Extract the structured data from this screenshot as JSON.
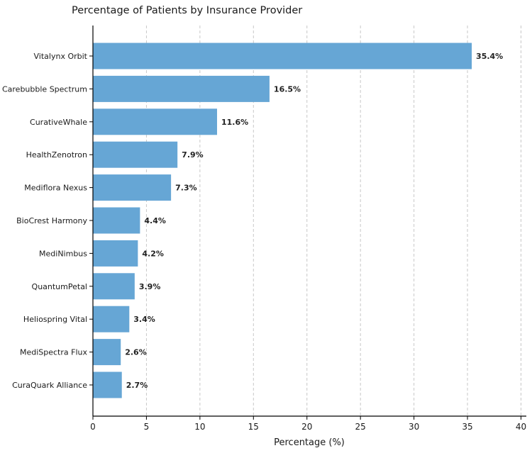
{
  "chart_data": {
    "type": "bar",
    "orientation": "horizontal",
    "title": "Percentage of Patients by Insurance Provider",
    "xlabel": "Percentage (%)",
    "ylabel": "",
    "categories": [
      "Vitalynx Orbit",
      "Carebubble Spectrum",
      "CurativeWhale",
      "HealthZenotron",
      "Mediflora Nexus",
      "BioCrest Harmony",
      "MediNimbus",
      "QuantumPetal",
      "Heliospring Vital",
      "MediSpectra Flux",
      "CuraQuark Alliance"
    ],
    "values": [
      35.4,
      16.5,
      11.6,
      7.9,
      7.3,
      4.4,
      4.2,
      3.9,
      3.4,
      2.6,
      2.7
    ],
    "value_labels": [
      "35.4%",
      "16.5%",
      "11.6%",
      "7.9%",
      "7.3%",
      "4.4%",
      "4.2%",
      "3.9%",
      "3.4%",
      "2.6%",
      "2.7%"
    ],
    "xlim": [
      0,
      40.5
    ],
    "xticks": [
      0,
      5,
      10,
      15,
      20,
      25,
      30,
      35,
      40
    ],
    "xtick_labels": [
      "0",
      "5",
      "10",
      "15",
      "20",
      "25",
      "30",
      "35",
      "40"
    ],
    "grid": "x-dashed",
    "legend": "none",
    "bar_color": "#66a6d5"
  }
}
